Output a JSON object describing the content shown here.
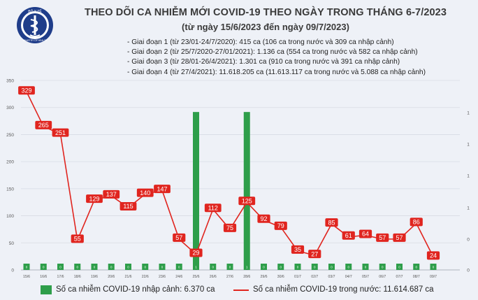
{
  "header": {
    "title": "THEO DÕI CA NHIỄM MỚI COVID-19 THEO NGÀY TRONG THÁNG 6-7/2023",
    "subtitle": "(từ ngày 15/6/2023 đến ngày 09/7/2023)"
  },
  "logo": {
    "top_text": "BỘ Y TẾ",
    "bottom_text": "MINISTRY OF HEALTH"
  },
  "phases": [
    "Giai đoạn 1 (từ 23/01-24/7/2020): 415 ca (106 ca trong nước và 309 ca nhập cảnh)",
    "Giai đoạn 2 (từ 25/7/2020-27/01/2021): 1.136 ca (554 ca trong nước và 582 ca nhập cảnh)",
    "Giai đoạn 3 (từ 28/01-26/4/2021): 1.301 ca (910 ca trong nước và 391 ca nhập cảnh)",
    "Giai đoạn 4 (từ 27/4/2021): 11.618.205 ca (11.613.117 ca trong nước và 5.088 ca nhập cảnh)"
  ],
  "legend": {
    "imported": "Số ca nhiễm COVID-19 nhập cảnh: 6.370 ca",
    "domestic": "Số ca nhiễm COVID-19 trong nước: 11.614.687 ca"
  },
  "colors": {
    "bar": "#2e9e4a",
    "line": "#e0251f",
    "label_bg": "#e0251f",
    "background": "#eef1f7"
  },
  "chart_data": {
    "type": "bar+line",
    "categories": [
      "15/6",
      "16/6",
      "17/6",
      "18/6",
      "19/6",
      "20/6",
      "21/6",
      "22/6",
      "23/6",
      "24/6",
      "25/6",
      "26/6",
      "27/6",
      "28/6",
      "29/6",
      "30/6",
      "01/7",
      "02/7",
      "03/7",
      "04/7",
      "05/7",
      "06/7",
      "07/7",
      "08/7",
      "09/7"
    ],
    "left_axis": {
      "ticks": [
        0,
        50,
        100,
        150,
        200,
        250,
        300,
        350
      ],
      "ylim": [
        0,
        350
      ]
    },
    "right_axis": {
      "ticks": [
        "0",
        "0",
        "1",
        "1",
        "1",
        "1"
      ],
      "ylim": [
        0,
        1.2
      ]
    },
    "series": [
      {
        "name": "Số ca nhiễm COVID-19 nhập cảnh",
        "kind": "bar",
        "axis": "right",
        "values": [
          0,
          0,
          0,
          0,
          0,
          0,
          0,
          0,
          0,
          0,
          1,
          0,
          0,
          1,
          0,
          0,
          0,
          0,
          0,
          0,
          0,
          0,
          0,
          0,
          0
        ]
      },
      {
        "name": "Số ca nhiễm COVID-19 trong nước",
        "kind": "line",
        "axis": "left",
        "values": [
          329,
          265,
          251,
          55,
          129,
          137,
          115,
          140,
          147,
          57,
          29,
          112,
          75,
          125,
          92,
          79,
          35,
          27,
          85,
          61,
          64,
          57,
          57,
          86,
          24
        ]
      }
    ]
  }
}
